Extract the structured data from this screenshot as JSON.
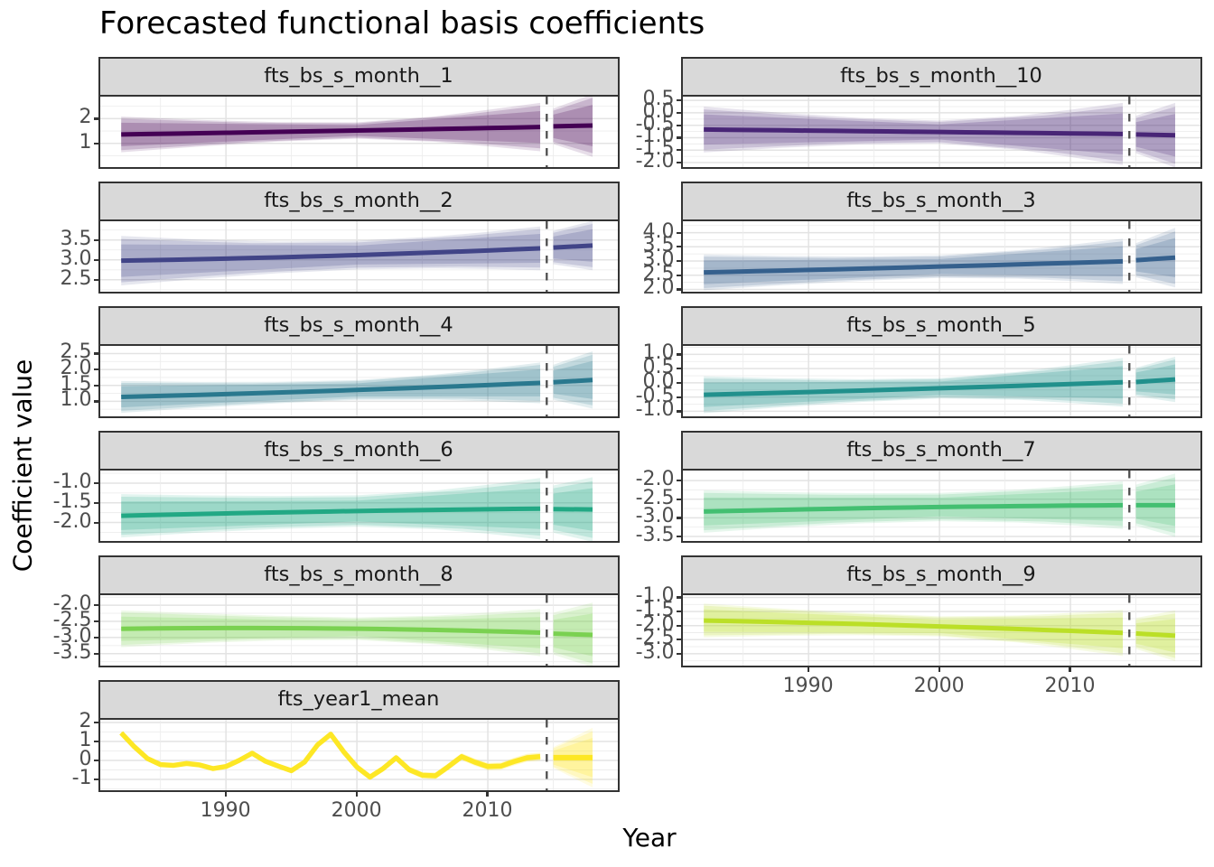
{
  "figure": {
    "title": "Forecasted functional basis coefficients",
    "xlabel": "Year",
    "ylabel": "Coefficient value"
  },
  "chart_data": {
    "type": "line",
    "title": "Forecasted functional basis coefficients",
    "xlabel": "Year",
    "ylabel": "Coefficient value",
    "layout": "facet_wrap, 2 columns, 11 panels, free y scales, shared x axis",
    "x_domain": [
      1980.4,
      2019.93
    ],
    "x_major_ticks": [
      1990,
      2000,
      2010
    ],
    "x_tick_labels": [
      "1990",
      "2000",
      "2010"
    ],
    "x_minor_gridlines": [
      1985,
      1995,
      2005,
      2015
    ],
    "observed_range": [
      1982,
      2014
    ],
    "forecast_range": [
      2015,
      2018
    ],
    "cutoff_year": 2014.5,
    "interval_level_fractions": [
      0.66,
      0.88,
      1.0
    ],
    "facets": [
      {
        "name": "fts_bs_s_month__1",
        "color": "#440154",
        "row": 1,
        "col": 1,
        "ylim": [
          0.04,
          2.89
        ],
        "yticks": [
          2,
          1
        ],
        "ytick_labels": [
          "2",
          "1"
        ],
        "observed_line": {
          "start": 1.36,
          "mid": 1.5,
          "end": 1.66
        },
        "observed_band_halfwidth": {
          "start": 0.72,
          "mid": 0.33,
          "end": 0.98
        },
        "forecast_mean": [
          1.69,
          1.72
        ],
        "forecast_band_halfwidth": [
          0.72,
          1.27
        ]
      },
      {
        "name": "fts_bs_s_month__10",
        "color": "#482576",
        "row": 1,
        "col": 2,
        "ylim": [
          -2.18,
          0.65
        ],
        "yticks": [
          0.5,
          0.0,
          -0.5,
          -1.0,
          -1.5,
          -2.0
        ],
        "ytick_labels": [
          "0.5",
          "0.0",
          "-0.5",
          "-1.0",
          "-1.5",
          "-2.0"
        ],
        "observed_line": {
          "start": -0.67,
          "mid": -0.76,
          "end": -0.85
        },
        "observed_band_halfwidth": {
          "start": 0.92,
          "mid": 0.46,
          "end": 1.25
        },
        "forecast_mean": [
          -0.87,
          -0.9
        ],
        "forecast_band_halfwidth": [
          0.75,
          1.3
        ]
      },
      {
        "name": "fts_bs_s_month__2",
        "color": "#414487",
        "row": 2,
        "col": 1,
        "ylim": [
          2.2,
          3.97
        ],
        "yticks": [
          3.5,
          3.0,
          2.5
        ],
        "ytick_labels": [
          "3.5",
          "3.0",
          "2.5"
        ],
        "observed_line": {
          "start": 2.98,
          "mid": 3.1,
          "end": 3.29
        },
        "observed_band_halfwidth": {
          "start": 0.62,
          "mid": 0.36,
          "end": 0.55
        },
        "forecast_mean": [
          3.31,
          3.36
        ],
        "forecast_band_halfwidth": [
          0.42,
          0.62
        ]
      },
      {
        "name": "fts_bs_s_month__3",
        "color": "#35608D",
        "row": 2,
        "col": 2,
        "ylim": [
          1.92,
          4.4
        ],
        "yticks": [
          4.0,
          3.5,
          3.0,
          2.5,
          2.0
        ],
        "ytick_labels": [
          "4.0",
          "3.5",
          "3.0",
          "2.5",
          "2.0"
        ],
        "observed_line": {
          "start": 2.6,
          "mid": 2.78,
          "end": 2.99
        },
        "observed_band_halfwidth": {
          "start": 0.63,
          "mid": 0.4,
          "end": 0.8
        },
        "forecast_mean": [
          3.03,
          3.12
        ],
        "forecast_band_halfwidth": [
          0.6,
          1.05
        ]
      },
      {
        "name": "fts_bs_s_month__4",
        "color": "#2A788E",
        "row": 3,
        "col": 1,
        "ylim": [
          0.53,
          2.74
        ],
        "yticks": [
          2.5,
          2.0,
          1.5,
          1.0
        ],
        "ytick_labels": [
          "2.5",
          "2.0",
          "1.5",
          "1.0"
        ],
        "observed_line": {
          "start": 1.14,
          "mid": 1.33,
          "end": 1.58
        },
        "observed_band_halfwidth": {
          "start": 0.5,
          "mid": 0.31,
          "end": 0.64
        },
        "forecast_mean": [
          1.6,
          1.67
        ],
        "forecast_band_halfwidth": [
          0.55,
          0.9
        ]
      },
      {
        "name": "fts_bs_s_month__5",
        "color": "#21908C",
        "row": 3,
        "col": 2,
        "ylim": [
          -1.18,
          1.3
        ],
        "yticks": [
          1.0,
          0.5,
          0.0,
          -0.5,
          -1.0
        ],
        "ytick_labels": [
          "1.0",
          "0.5",
          "0.0",
          "-0.5",
          "-1.0"
        ],
        "observed_line": {
          "start": -0.42,
          "mid": -0.22,
          "end": 0.02
        },
        "observed_band_halfwidth": {
          "start": 0.65,
          "mid": 0.36,
          "end": 0.86
        },
        "forecast_mean": [
          0.03,
          0.12
        ],
        "forecast_band_halfwidth": [
          0.5,
          0.8
        ]
      },
      {
        "name": "fts_bs_s_month__6",
        "color": "#22A884",
        "row": 4,
        "col": 1,
        "ylim": [
          -2.47,
          -0.68
        ],
        "yticks": [
          -1.0,
          -1.5,
          -2.0
        ],
        "ytick_labels": [
          "-1.0",
          "-1.5",
          "-2.0"
        ],
        "observed_line": {
          "start": -1.83,
          "mid": -1.72,
          "end": -1.65
        },
        "observed_band_halfwidth": {
          "start": 0.55,
          "mid": 0.4,
          "end": 0.78
        },
        "forecast_mean": [
          -1.66,
          -1.67
        ],
        "forecast_band_halfwidth": [
          0.6,
          0.82
        ]
      },
      {
        "name": "fts_bs_s_month__7",
        "color": "#43BF71",
        "row": 4,
        "col": 2,
        "ylim": [
          -3.62,
          -1.73
        ],
        "yticks": [
          -2.0,
          -2.5,
          -3.0,
          -3.5
        ],
        "ytick_labels": [
          "-2.0",
          "-2.5",
          "-3.0",
          "-3.5"
        ],
        "observed_line": {
          "start": -2.83,
          "mid": -2.72,
          "end": -2.66
        },
        "observed_band_halfwidth": {
          "start": 0.57,
          "mid": 0.38,
          "end": 0.64
        },
        "forecast_mean": [
          -2.66,
          -2.66
        ],
        "forecast_band_halfwidth": [
          0.55,
          0.85
        ]
      },
      {
        "name": "fts_bs_s_month__8",
        "color": "#7AD151",
        "row": 5,
        "col": 1,
        "ylim": [
          -3.87,
          -1.69
        ],
        "yticks": [
          -2.0,
          -2.5,
          -3.0,
          -3.5
        ],
        "ytick_labels": [
          "-2.0",
          "-2.5",
          "-3.0",
          "-3.5"
        ],
        "observed_line": {
          "start": -2.73,
          "mid": -2.72,
          "end": -2.85
        },
        "observed_band_halfwidth": {
          "start": 0.57,
          "mid": 0.35,
          "end": 0.73
        },
        "forecast_mean": [
          -2.88,
          -2.92
        ],
        "forecast_band_halfwidth": [
          0.65,
          1.0
        ]
      },
      {
        "name": "fts_bs_s_month__9",
        "color": "#BBDF27",
        "row": 5,
        "col": 2,
        "ylim": [
          -3.42,
          -0.92
        ],
        "yticks": [
          -1.0,
          -1.5,
          -2.0,
          -2.5,
          -3.0
        ],
        "ytick_labels": [
          "-1.0",
          "-1.5",
          "-2.0",
          "-2.5",
          "-3.0"
        ],
        "observed_line": {
          "start": -1.82,
          "mid": -2.0,
          "end": -2.26
        },
        "observed_band_halfwidth": {
          "start": 0.6,
          "mid": 0.36,
          "end": 0.82
        },
        "forecast_mean": [
          -2.28,
          -2.36
        ],
        "forecast_band_halfwidth": [
          0.55,
          0.9
        ]
      },
      {
        "name": "fts_year1_mean",
        "color": "#FDE725",
        "row": 6,
        "col": 1,
        "ylim": [
          -1.57,
          2.14
        ],
        "yticks": [
          2,
          1,
          0,
          -1
        ],
        "ytick_labels": [
          "2",
          "1",
          "0",
          "-1"
        ],
        "observed_values": [
          1.45,
          0.72,
          0.1,
          -0.22,
          -0.26,
          -0.16,
          -0.24,
          -0.43,
          -0.32,
          0.0,
          0.38,
          -0.04,
          -0.3,
          -0.54,
          -0.09,
          0.82,
          1.38,
          0.45,
          -0.35,
          -0.88,
          -0.43,
          0.14,
          -0.49,
          -0.78,
          -0.81,
          -0.32,
          0.2,
          -0.09,
          -0.32,
          -0.3,
          -0.06,
          0.14,
          0.2
        ],
        "observed_band_halfwidth": {
          "start": 0.08,
          "mid": 0.14,
          "end": 0.22
        },
        "forecast_mean": [
          0.15,
          0.15
        ],
        "forecast_band_halfwidth": [
          0.55,
          1.57
        ]
      }
    ],
    "style": {
      "strip_fill": "#d9d9d9",
      "strip_text_color": "#1a1a1a",
      "panel_border_color": "#333333",
      "grid_major_color": "#e3e3e3",
      "grid_minor_color": "#ededed",
      "tick_text_color": "#4d4d4d",
      "cutoff_line_color": "#4d4d4d",
      "ribbon_alphas": [
        0.22,
        0.18,
        0.13
      ],
      "legend": "none"
    }
  }
}
